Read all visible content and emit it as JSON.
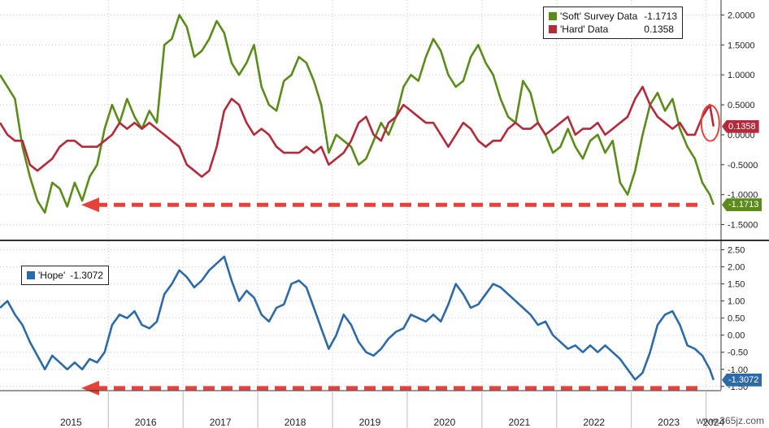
{
  "chart_data": [
    {
      "type": "line",
      "ylim": [
        -1.75,
        2.25
      ],
      "yticks": [
        -1.5,
        -1.0,
        -0.5,
        0.0,
        0.5,
        1.0,
        1.5,
        2.0
      ],
      "ytick_labels": [
        "-1.5000",
        "-1.0000",
        "-0.5000",
        "0.0000",
        "0.5000",
        "1.0000",
        "1.5000",
        "2.0000"
      ],
      "legend_position": "top-right",
      "grid": true,
      "series": [
        {
          "name": "'Soft' Survey Data",
          "last_label": "-1.1713",
          "color": "#5b8c1a",
          "x": [
            2014.55,
            2014.65,
            2014.75,
            2014.85,
            2014.95,
            2015.05,
            2015.15,
            2015.25,
            2015.35,
            2015.45,
            2015.55,
            2015.65,
            2015.75,
            2015.85,
            2015.95,
            2016.05,
            2016.15,
            2016.25,
            2016.35,
            2016.45,
            2016.55,
            2016.65,
            2016.75,
            2016.85,
            2016.95,
            2017.05,
            2017.15,
            2017.25,
            2017.35,
            2017.45,
            2017.55,
            2017.65,
            2017.75,
            2017.85,
            2017.95,
            2018.05,
            2018.15,
            2018.25,
            2018.35,
            2018.45,
            2018.55,
            2018.65,
            2018.75,
            2018.85,
            2018.95,
            2019.05,
            2019.15,
            2019.25,
            2019.35,
            2019.45,
            2019.55,
            2019.65,
            2019.75,
            2019.85,
            2019.95,
            2020.05,
            2020.15,
            2020.25,
            2020.35,
            2020.45,
            2020.55,
            2020.65,
            2020.75,
            2020.85,
            2020.95,
            2021.05,
            2021.15,
            2021.25,
            2021.35,
            2021.45,
            2021.55,
            2021.65,
            2021.75,
            2021.85,
            2021.95,
            2022.05,
            2022.15,
            2022.25,
            2022.35,
            2022.45,
            2022.55,
            2022.65,
            2022.75,
            2022.85,
            2022.95,
            2023.05,
            2023.15,
            2023.25,
            2023.35,
            2023.45,
            2023.55,
            2023.65,
            2023.75,
            2023.85,
            2023.95,
            2024.05,
            2024.1
          ],
          "values": [
            1.0,
            0.8,
            0.6,
            -0.2,
            -0.7,
            -1.1,
            -1.3,
            -0.8,
            -0.9,
            -1.2,
            -0.8,
            -1.1,
            -0.7,
            -0.5,
            0.1,
            0.5,
            0.2,
            0.6,
            0.3,
            0.1,
            0.4,
            0.2,
            1.5,
            1.6,
            2.0,
            1.8,
            1.3,
            1.4,
            1.6,
            1.9,
            1.7,
            1.2,
            1.0,
            1.2,
            1.5,
            0.8,
            0.5,
            0.4,
            0.9,
            1.0,
            1.3,
            1.2,
            0.9,
            0.5,
            -0.3,
            0.0,
            -0.1,
            -0.2,
            -0.5,
            -0.4,
            -0.1,
            0.2,
            0.0,
            0.3,
            0.8,
            1.0,
            0.9,
            1.3,
            1.6,
            1.4,
            1.0,
            0.8,
            0.9,
            1.3,
            1.5,
            1.2,
            1.0,
            0.6,
            0.3,
            0.2,
            0.9,
            0.7,
            0.2,
            0.0,
            -0.3,
            -0.2,
            0.1,
            -0.2,
            -0.4,
            -0.1,
            0.0,
            -0.3,
            -0.1,
            -0.8,
            -1.0,
            -0.6,
            0.0,
            0.5,
            0.7,
            0.4,
            0.6,
            0.1,
            -0.2,
            -0.4,
            -0.8,
            -1.0,
            -1.17
          ]
        },
        {
          "name": "'Hard' Data",
          "last_label": "0.1358",
          "color": "#b52a3a",
          "x": [
            2014.55,
            2014.65,
            2014.75,
            2014.85,
            2014.95,
            2015.05,
            2015.15,
            2015.25,
            2015.35,
            2015.45,
            2015.55,
            2015.65,
            2015.75,
            2015.85,
            2015.95,
            2016.05,
            2016.15,
            2016.25,
            2016.35,
            2016.45,
            2016.55,
            2016.65,
            2016.75,
            2016.85,
            2016.95,
            2017.05,
            2017.15,
            2017.25,
            2017.35,
            2017.45,
            2017.55,
            2017.65,
            2017.75,
            2017.85,
            2017.95,
            2018.05,
            2018.15,
            2018.25,
            2018.35,
            2018.45,
            2018.55,
            2018.65,
            2018.75,
            2018.85,
            2018.95,
            2019.05,
            2019.15,
            2019.25,
            2019.35,
            2019.45,
            2019.55,
            2019.65,
            2019.75,
            2019.85,
            2019.95,
            2020.05,
            2020.15,
            2020.25,
            2020.35,
            2020.45,
            2020.55,
            2020.65,
            2020.75,
            2020.85,
            2020.95,
            2021.05,
            2021.15,
            2021.25,
            2021.35,
            2021.45,
            2021.55,
            2021.65,
            2021.75,
            2021.85,
            2021.95,
            2022.05,
            2022.15,
            2022.25,
            2022.35,
            2022.45,
            2022.55,
            2022.65,
            2022.75,
            2022.85,
            2022.95,
            2023.05,
            2023.15,
            2023.25,
            2023.35,
            2023.45,
            2023.55,
            2023.65,
            2023.75,
            2023.85,
            2023.95,
            2024.05,
            2024.1
          ],
          "values": [
            0.2,
            0.0,
            -0.1,
            -0.1,
            -0.5,
            -0.6,
            -0.5,
            -0.4,
            -0.2,
            -0.1,
            -0.1,
            -0.2,
            -0.2,
            -0.2,
            -0.1,
            0.0,
            0.2,
            0.1,
            0.2,
            0.1,
            0.2,
            0.1,
            0.0,
            -0.1,
            -0.2,
            -0.5,
            -0.6,
            -0.7,
            -0.6,
            -0.2,
            0.4,
            0.6,
            0.5,
            0.2,
            0.0,
            0.1,
            0.0,
            -0.2,
            -0.3,
            -0.3,
            -0.3,
            -0.2,
            -0.3,
            -0.2,
            -0.5,
            -0.4,
            -0.3,
            -0.1,
            0.2,
            0.3,
            0.0,
            -0.1,
            0.2,
            0.3,
            0.5,
            0.4,
            0.3,
            0.2,
            0.2,
            0.0,
            -0.2,
            0.0,
            0.2,
            0.1,
            -0.1,
            -0.2,
            -0.1,
            -0.1,
            0.1,
            0.2,
            0.1,
            0.1,
            0.2,
            0.0,
            0.1,
            0.2,
            0.3,
            0.0,
            0.1,
            0.1,
            0.2,
            0.0,
            0.1,
            0.2,
            0.3,
            0.6,
            0.8,
            0.5,
            0.3,
            0.2,
            0.1,
            0.2,
            0.0,
            0.0,
            0.3,
            0.5,
            0.14
          ]
        }
      ],
      "circle_annotation": true,
      "arrow_at_value": -1.17
    },
    {
      "type": "line",
      "ylim": [
        -1.6,
        2.75
      ],
      "yticks": [
        -1.5,
        -1.0,
        -0.5,
        0.0,
        0.5,
        1.0,
        1.5,
        2.0,
        2.5
      ],
      "ytick_labels": [
        "-1.50",
        "-1.00",
        "-0.50",
        "0.00",
        "0.50",
        "1.00",
        "1.50",
        "2.00",
        "2.50"
      ],
      "legend_position": "top-left",
      "grid": true,
      "series": [
        {
          "name": "'Hope'",
          "last_label": "-1.3072",
          "color": "#2c6aa8",
          "x": [
            2014.55,
            2014.65,
            2014.75,
            2014.85,
            2014.95,
            2015.05,
            2015.15,
            2015.25,
            2015.35,
            2015.45,
            2015.55,
            2015.65,
            2015.75,
            2015.85,
            2015.95,
            2016.05,
            2016.15,
            2016.25,
            2016.35,
            2016.45,
            2016.55,
            2016.65,
            2016.75,
            2016.85,
            2016.95,
            2017.05,
            2017.15,
            2017.25,
            2017.35,
            2017.45,
            2017.55,
            2017.65,
            2017.75,
            2017.85,
            2017.95,
            2018.05,
            2018.15,
            2018.25,
            2018.35,
            2018.45,
            2018.55,
            2018.65,
            2018.75,
            2018.85,
            2018.95,
            2019.05,
            2019.15,
            2019.25,
            2019.35,
            2019.45,
            2019.55,
            2019.65,
            2019.75,
            2019.85,
            2019.95,
            2020.05,
            2020.15,
            2020.25,
            2020.35,
            2020.45,
            2020.55,
            2020.65,
            2020.75,
            2020.85,
            2020.95,
            2021.05,
            2021.15,
            2021.25,
            2021.35,
            2021.45,
            2021.55,
            2021.65,
            2021.75,
            2021.85,
            2021.95,
            2022.05,
            2022.15,
            2022.25,
            2022.35,
            2022.45,
            2022.55,
            2022.65,
            2022.75,
            2022.85,
            2022.95,
            2023.05,
            2023.15,
            2023.25,
            2023.35,
            2023.45,
            2023.55,
            2023.65,
            2023.75,
            2023.85,
            2023.95,
            2024.05,
            2024.1
          ],
          "values": [
            0.8,
            1.0,
            0.6,
            0.3,
            -0.2,
            -0.6,
            -1.0,
            -0.6,
            -0.8,
            -1.0,
            -0.8,
            -1.0,
            -0.7,
            -0.8,
            -0.5,
            0.3,
            0.6,
            0.5,
            0.7,
            0.3,
            0.2,
            0.4,
            1.2,
            1.5,
            1.9,
            1.7,
            1.4,
            1.6,
            1.9,
            2.1,
            2.3,
            1.6,
            1.0,
            1.3,
            1.1,
            0.6,
            0.4,
            0.8,
            0.9,
            1.5,
            1.6,
            1.4,
            0.8,
            0.2,
            -0.4,
            0.0,
            0.6,
            0.3,
            -0.2,
            -0.5,
            -0.6,
            -0.4,
            -0.1,
            0.1,
            0.2,
            0.6,
            0.5,
            0.4,
            0.6,
            0.4,
            0.9,
            1.5,
            1.2,
            0.8,
            0.9,
            1.2,
            1.5,
            1.4,
            1.2,
            1.0,
            0.8,
            0.6,
            0.3,
            0.4,
            0.0,
            -0.2,
            -0.4,
            -0.3,
            -0.5,
            -0.3,
            -0.5,
            -0.3,
            -0.5,
            -0.7,
            -1.0,
            -1.3,
            -1.1,
            -0.5,
            0.3,
            0.6,
            0.7,
            0.3,
            -0.3,
            -0.4,
            -0.6,
            -1.0,
            -1.31
          ]
        }
      ],
      "arrow_at_value": -1.55
    }
  ],
  "x_axis": {
    "tick_labels": [
      "2015",
      "2016",
      "2017",
      "2018",
      "2019",
      "2020",
      "2021",
      "2022",
      "2023",
      "2024"
    ],
    "tick_values": [
      2015.5,
      2016.5,
      2017.5,
      2018.5,
      2019.5,
      2020.5,
      2021.5,
      2022.5,
      2023.5,
      2024.1
    ],
    "year_boundaries": [
      2016,
      2017,
      2018,
      2019,
      2020,
      2021,
      2022,
      2023,
      2024
    ],
    "xlim": [
      2014.55,
      2024.2
    ]
  },
  "watermark": "www.365jz.com"
}
